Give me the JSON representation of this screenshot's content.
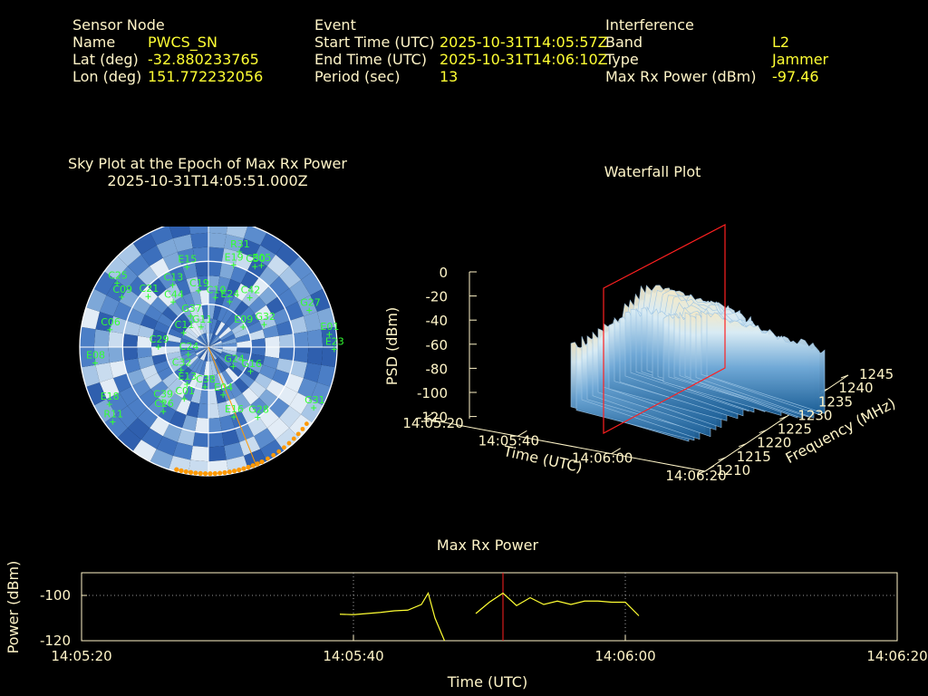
{
  "header": {
    "sensor": {
      "title": "Sensor Node",
      "rows": [
        {
          "label": "Name",
          "value": "PWCS_SN"
        },
        {
          "label": "Lat (deg)",
          "value": "-32.880233765"
        },
        {
          "label": "Lon (deg)",
          "value": "151.772232056"
        }
      ]
    },
    "event": {
      "title": "Event",
      "rows": [
        {
          "label": "Start Time (UTC)",
          "value": "2025-10-31T14:05:57Z"
        },
        {
          "label": "End Time (UTC)",
          "value": "2025-10-31T14:06:10Z"
        },
        {
          "label": "Period (sec)",
          "value": "13"
        }
      ]
    },
    "interference": {
      "title": "Interference",
      "rows": [
        {
          "label": "Band",
          "value": "L2"
        },
        {
          "label": "Type",
          "value": "Jammer"
        },
        {
          "label": "Max Rx Power (dBm)",
          "value": "-97.46"
        }
      ]
    }
  },
  "colors": {
    "label": "#fff5c8",
    "value": "#ffff33",
    "sat": "#33ff33",
    "track": "#ff9900",
    "marker": "#ff2020",
    "power": "#ffff33",
    "axis": "#fff5c8"
  },
  "chart_data": [
    {
      "type": "scatter",
      "title": "Sky Plot at the Epoch of Max Rx Power",
      "subtitle": "2025-10-31T14:05:51.000Z",
      "projection": "polar (azimuth / elevation)",
      "satellites": [
        {
          "id": "E19",
          "az": 17,
          "el": 30
        },
        {
          "id": "R31",
          "az": 18,
          "el": 20
        },
        {
          "id": "E05",
          "az": 33,
          "el": 22
        },
        {
          "id": "C30",
          "az": 30,
          "el": 25
        },
        {
          "id": "G27",
          "az": 70,
          "el": 15
        },
        {
          "id": "E01",
          "az": 84,
          "el": 5
        },
        {
          "id": "E23",
          "az": 91,
          "el": 2
        },
        {
          "id": "G31",
          "az": 120,
          "el": 5
        },
        {
          "id": "G32",
          "az": 68,
          "el": 48
        },
        {
          "id": "G28",
          "az": 145,
          "el": 30
        },
        {
          "id": "E16",
          "az": 160,
          "el": 38
        },
        {
          "id": "E04",
          "az": 163,
          "el": 55
        },
        {
          "id": "G16",
          "az": 120,
          "el": 56
        },
        {
          "id": "G24",
          "az": 128,
          "el": 68
        },
        {
          "id": "E09",
          "az": 60,
          "el": 62
        },
        {
          "id": "E24",
          "az": 25,
          "el": 55
        },
        {
          "id": "C42",
          "az": 40,
          "el": 45
        },
        {
          "id": "C10",
          "az": 8,
          "el": 55
        },
        {
          "id": "C19",
          "az": 350,
          "el": 50
        },
        {
          "id": "C13",
          "az": 330,
          "el": 40
        },
        {
          "id": "C21",
          "az": 310,
          "el": 35
        },
        {
          "id": "C44",
          "az": 322,
          "el": 50
        },
        {
          "id": "C25",
          "az": 305,
          "el": 12
        },
        {
          "id": "E15",
          "az": 345,
          "el": 32
        },
        {
          "id": "C09",
          "az": 300,
          "el": 20
        },
        {
          "id": "C06",
          "az": 280,
          "el": 20
        },
        {
          "id": "E08",
          "az": 262,
          "el": 10
        },
        {
          "id": "E18",
          "az": 240,
          "el": 10
        },
        {
          "id": "R11",
          "az": 232,
          "el": 5
        },
        {
          "id": "C39",
          "az": 220,
          "el": 40
        },
        {
          "id": "C26",
          "az": 215,
          "el": 35
        },
        {
          "id": "C01",
          "az": 205,
          "el": 50
        },
        {
          "id": "E13",
          "az": 210,
          "el": 60
        },
        {
          "id": "C38",
          "az": 185,
          "el": 62
        },
        {
          "id": "C32",
          "az": 230,
          "el": 65
        },
        {
          "id": "C29",
          "az": 270,
          "el": 55
        },
        {
          "id": "G11",
          "az": 340,
          "el": 75
        },
        {
          "id": "C11",
          "az": 300,
          "el": 70
        },
        {
          "id": "C24",
          "az": 250,
          "el": 75
        },
        {
          "id": "G37",
          "az": 330,
          "el": 65
        }
      ],
      "interference_direction": {
        "az": 158,
        "el": 0
      },
      "orange_track_az_range": [
        155,
        196
      ]
    },
    {
      "type": "surface",
      "title": "Waterfall Plot",
      "xlabel": "Time (UTC)",
      "ylabel": "Frequency (MHz)",
      "zlabel": "PSD (dBm)",
      "x_ticks": [
        "14:05:20",
        "14:05:40",
        "14:06:00",
        "14:06:20"
      ],
      "y_ticks": [
        "1210",
        "1215",
        "1220",
        "1225",
        "1230",
        "1235",
        "1240",
        "1245"
      ],
      "z_ticks": [
        "0",
        "-20",
        "-40",
        "-60",
        "-80",
        "-100",
        "-120"
      ],
      "z_range": [
        -120,
        0
      ],
      "marker_time": "14:05:51"
    },
    {
      "type": "line",
      "title": "Max Rx Power",
      "xlabel": "Time (UTC)",
      "ylabel": "Power (dBm)",
      "x_ticks": [
        "14:05:20",
        "14:05:40",
        "14:06:00",
        "14:06:20"
      ],
      "y_ticks": [
        "-100",
        "-120"
      ],
      "xlim_sec": [
        0,
        60
      ],
      "ylim": [
        -120,
        -90
      ],
      "marker_sec": 31,
      "series": [
        {
          "points": [
            [
              19.0,
              -108.3
            ],
            [
              20.0,
              -108.5
            ],
            [
              21.0,
              -108.0
            ],
            [
              22.0,
              -107.5
            ],
            [
              23.0,
              -106.8
            ],
            [
              24.0,
              -106.5
            ],
            [
              25.0,
              -104.0
            ],
            [
              25.5,
              -99.0
            ],
            [
              26.0,
              -110.0
            ],
            [
              26.7,
              -120
            ]
          ]
        },
        {
          "points": [
            [
              29.0,
              -108.0
            ],
            [
              30.0,
              -103.0
            ],
            [
              31.0,
              -99.0
            ],
            [
              32.0,
              -104.5
            ],
            [
              33.0,
              -101.0
            ],
            [
              34.0,
              -104.0
            ],
            [
              35.0,
              -102.5
            ],
            [
              36.0,
              -104.0
            ],
            [
              37.0,
              -102.5
            ],
            [
              38.0,
              -102.5
            ],
            [
              39.0,
              -103.0
            ],
            [
              40.0,
              -103.0
            ],
            [
              41.0,
              -109.0
            ]
          ]
        }
      ]
    }
  ]
}
